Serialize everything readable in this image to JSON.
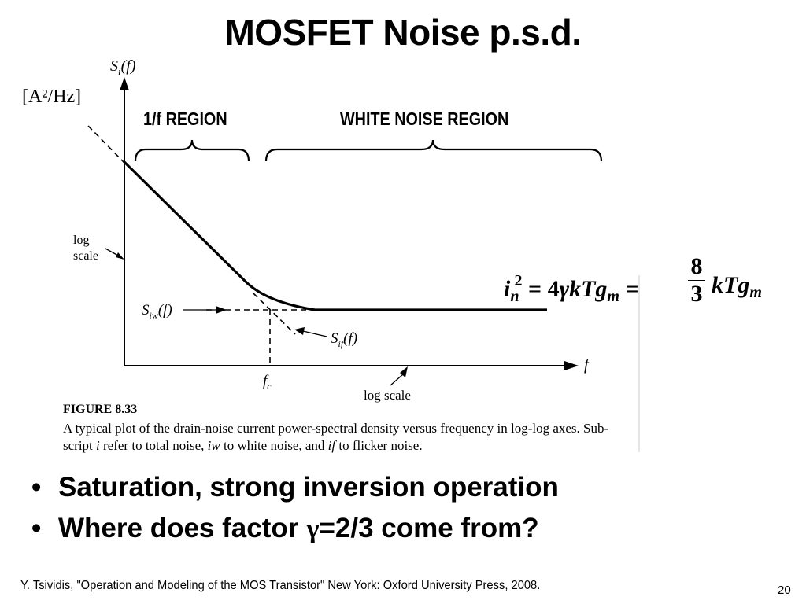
{
  "slide": {
    "title": "MOSFET Noise p.s.d.",
    "units": "[A²/Hz]",
    "page_number": "20",
    "footer": "Y. Tsividis, \"Operation and Modeling of the MOS Transistor\" New York: Oxford University Press, 2008."
  },
  "figure": {
    "y_axis_label": {
      "base": "S",
      "sub": "i",
      "arg": "(f)"
    },
    "x_axis_label": "f",
    "log_scale_y_line1": "log",
    "log_scale_y_line2": "scale",
    "log_scale_x": "log scale",
    "region_1f": "1/f REGION",
    "region_white": "WHITE NOISE REGION",
    "s_iw": {
      "base": "S",
      "sub": "iw",
      "arg": "(f)"
    },
    "s_if": {
      "base": "S",
      "sub": "if",
      "arg": "(f)"
    },
    "fc": {
      "base": "f",
      "sub": "c"
    }
  },
  "caption": {
    "figure_number": "FIGURE 8.33",
    "line1": "A typical plot of the drain-noise current power-spectral density versus frequency in log-log axes. Sub-",
    "line2_parts": [
      "script ",
      "i",
      " refer to total noise, ",
      "iw",
      " to white noise, and ",
      "if",
      " to flicker noise."
    ]
  },
  "equation": {
    "lhs_base": "i",
    "lhs_sub": "n",
    "lhs_sup": "2",
    "eq1": "= 4",
    "gamma": "γ",
    "mid": "kTg",
    "mid_sub": "m",
    "eq2": "=",
    "frac_num": "8",
    "frac_den": "3",
    "rhs": "kTg",
    "rhs_sub": "m"
  },
  "bullets": [
    {
      "text": "Saturation, strong inversion operation"
    },
    {
      "pre": "Where does factor ",
      "gamma": "γ",
      "post": "=2/3 come from?"
    }
  ],
  "bullet_symbol": "•"
}
